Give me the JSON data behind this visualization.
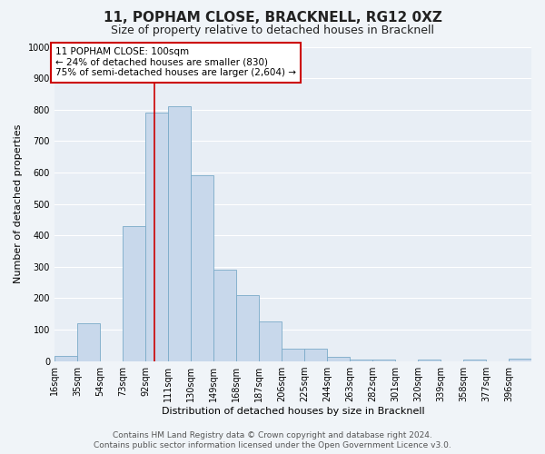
{
  "title": "11, POPHAM CLOSE, BRACKNELL, RG12 0XZ",
  "subtitle": "Size of property relative to detached houses in Bracknell",
  "xlabel": "Distribution of detached houses by size in Bracknell",
  "ylabel": "Number of detached properties",
  "bar_color": "#c8d8eb",
  "bar_edge_color": "#7aaac8",
  "background_color": "#f0f4f8",
  "plot_bg_color": "#e8eef5",
  "tick_labels": [
    "16sqm",
    "35sqm",
    "54sqm",
    "73sqm",
    "92sqm",
    "111sqm",
    "130sqm",
    "149sqm",
    "168sqm",
    "187sqm",
    "206sqm",
    "225sqm",
    "244sqm",
    "263sqm",
    "282sqm",
    "301sqm",
    "320sqm",
    "339sqm",
    "358sqm",
    "377sqm",
    "396sqm"
  ],
  "bin_edges": [
    16,
    35,
    54,
    73,
    92,
    111,
    130,
    149,
    168,
    187,
    206,
    225,
    244,
    263,
    282,
    301,
    320,
    339,
    358,
    377,
    396
  ],
  "bar_heights": [
    15,
    120,
    0,
    430,
    790,
    810,
    590,
    290,
    210,
    125,
    40,
    40,
    12,
    5,
    5,
    0,
    5,
    0,
    5,
    0,
    8
  ],
  "ylim": [
    0,
    1000
  ],
  "yticks": [
    0,
    100,
    200,
    300,
    400,
    500,
    600,
    700,
    800,
    900,
    1000
  ],
  "red_line_x": 100,
  "annotation_title": "11 POPHAM CLOSE: 100sqm",
  "annotation_line1": "← 24% of detached houses are smaller (830)",
  "annotation_line2": "75% of semi-detached houses are larger (2,604) →",
  "annotation_box_color": "#ffffff",
  "annotation_box_edge": "#cc0000",
  "red_line_color": "#cc0000",
  "footer1": "Contains HM Land Registry data © Crown copyright and database right 2024.",
  "footer2": "Contains public sector information licensed under the Open Government Licence v3.0.",
  "grid_color": "#ffffff",
  "title_fontsize": 11,
  "subtitle_fontsize": 9,
  "axis_label_fontsize": 8,
  "tick_fontsize": 7,
  "annotation_fontsize": 7.5,
  "footer_fontsize": 6.5
}
